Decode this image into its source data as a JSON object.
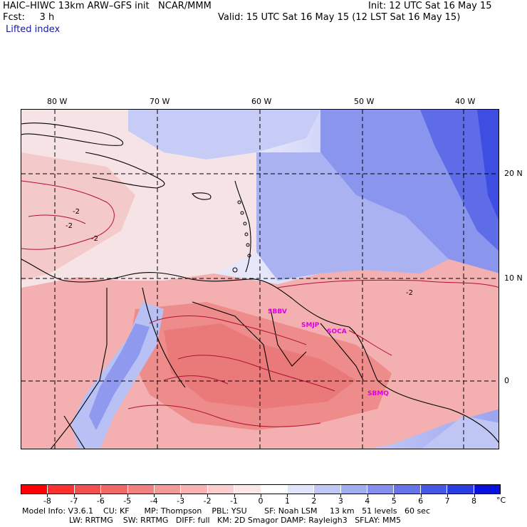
{
  "header": {
    "title": "HAIC–HIWC 13km ARW–GFS init   NCAR/MMM",
    "init": "Init: 12 UTC Sat 16 May 15",
    "fcst": "Fcst:     3 h",
    "valid": "Valid: 15 UTC Sat 16 May 15 (12 LST Sat 16 May 15)",
    "field": "Lifted index"
  },
  "map": {
    "lon_labels": [
      "80 W",
      "70 W",
      "60 W",
      "50 W",
      "40 W"
    ],
    "lat_labels": [
      "20 N",
      "10 N",
      "0"
    ],
    "contour_label": "-2",
    "stations": [
      "SBBV",
      "SMJP",
      "SOCA",
      "SBMQ"
    ],
    "colors": {
      "negative": "#f07070",
      "positive": "#6a7bf0",
      "neutral": "#f4f0f6"
    }
  },
  "colorbar": {
    "labels": [
      "-8",
      "-7",
      "-6",
      "-5",
      "-4",
      "-3",
      "-2",
      "-1",
      "0",
      "1",
      "2",
      "3",
      "4",
      "5",
      "6",
      "7",
      "8"
    ],
    "unit": "°C",
    "colors": [
      "#ff0000",
      "#ff3030",
      "#f45050",
      "#f06868",
      "#f28080",
      "#f59898",
      "#f8b4b4",
      "#fbcccc",
      "#fde6e6",
      "#ffffff",
      "#e2e4fb",
      "#c2c8f6",
      "#a4acf2",
      "#8590ee",
      "#6674ea",
      "#4858e6",
      "#2a3ce2",
      "#0a10dc"
    ]
  },
  "footer": {
    "line1": "Model Info: V3.6.1    CU: KF      MP: Thompson    PBL: YSU       SF: Noah LSM     13 km   51 levels   60 sec",
    "line2": "LW: RRTMG    SW: RRTMG   DIFF: full   KM: 2D Smagor DAMP: Rayleigh3   SFLAY: MM5"
  }
}
